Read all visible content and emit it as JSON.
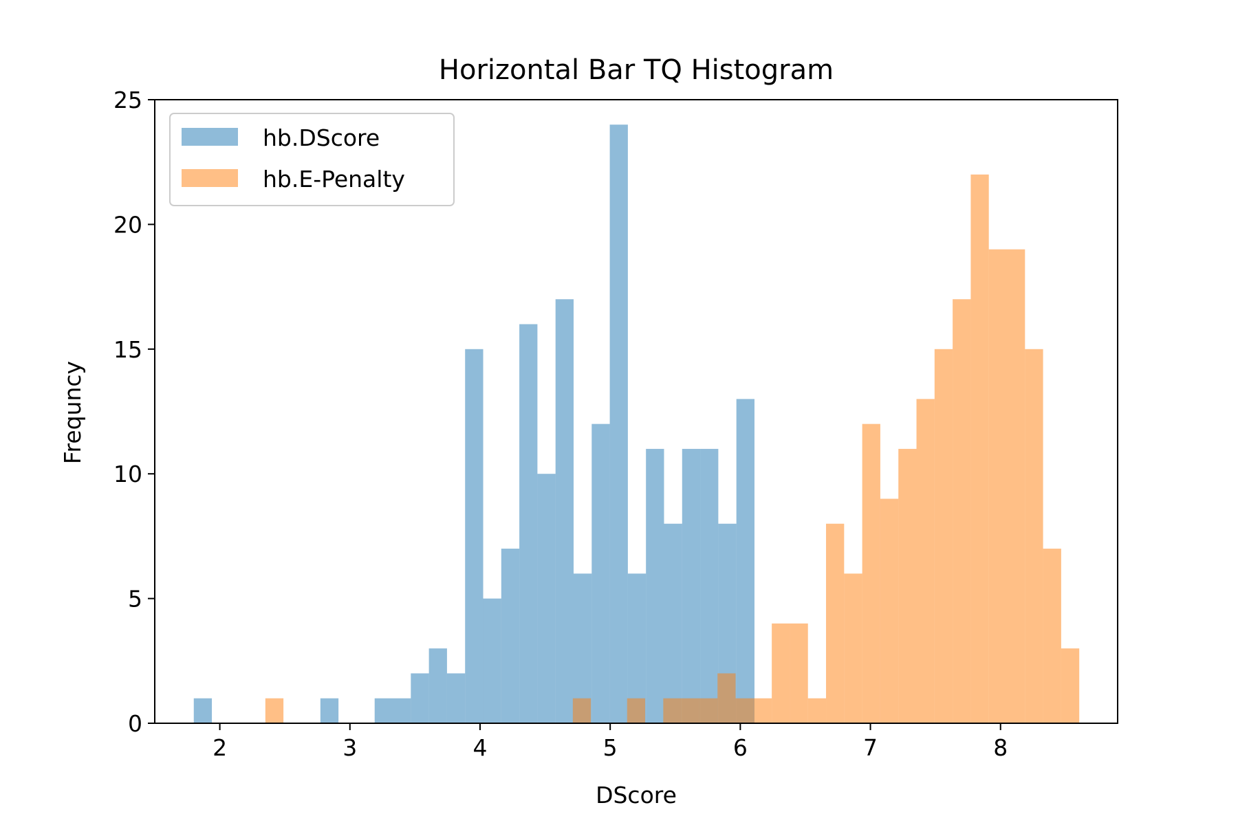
{
  "chart_data": {
    "type": "bar",
    "title": "Horizontal Bar TQ Histogram",
    "xlabel": "DScore",
    "ylabel": "Frequncy",
    "xlim": [
      1.5,
      8.9
    ],
    "ylim": [
      0,
      25
    ],
    "xticks": [
      2,
      3,
      4,
      5,
      6,
      7,
      8
    ],
    "yticks": [
      0,
      5,
      10,
      15,
      20,
      25
    ],
    "grid": false,
    "legend_position": "upper-left",
    "series": [
      {
        "name": "hb.DScore",
        "color": "#1f77b4",
        "alpha": 0.5,
        "bin_edges": [
          1.8,
          1.939,
          2.078,
          2.217,
          2.356,
          2.495,
          2.634,
          2.773,
          2.912,
          3.051,
          3.19,
          3.329,
          3.468,
          3.607,
          3.746,
          3.885,
          4.024,
          4.163,
          4.302,
          4.441,
          4.58,
          4.719,
          4.858,
          4.997,
          5.136,
          5.275,
          5.414,
          5.553,
          5.692,
          5.831,
          5.97,
          6.109
        ],
        "counts": [
          1,
          0,
          0,
          0,
          0,
          0,
          0,
          1,
          0,
          0,
          1,
          1,
          2,
          3,
          2,
          15,
          5,
          7,
          16,
          10,
          17,
          6,
          12,
          24,
          6,
          11,
          8,
          11,
          11,
          8,
          13
        ]
      },
      {
        "name": "hb.E-Penalty",
        "color": "#ff7f0e",
        "alpha": 0.5,
        "bin_edges": [
          2.35,
          2.489,
          2.628,
          2.767,
          2.906,
          3.045,
          3.184,
          3.323,
          3.462,
          3.601,
          3.74,
          3.879,
          4.018,
          4.157,
          4.296,
          4.435,
          4.574,
          4.713,
          4.852,
          4.991,
          5.13,
          5.269,
          5.408,
          5.547,
          5.686,
          5.825,
          5.964,
          6.103,
          6.242,
          6.381,
          6.52,
          6.659,
          6.798,
          6.937,
          7.076,
          7.215,
          7.354,
          7.493,
          7.632,
          7.771,
          7.91,
          8.049,
          8.188,
          8.327,
          8.466,
          8.605
        ],
        "counts": [
          1,
          0,
          0,
          0,
          0,
          0,
          0,
          0,
          0,
          0,
          0,
          0,
          0,
          0,
          0,
          0,
          0,
          1,
          0,
          0,
          1,
          0,
          1,
          1,
          1,
          2,
          1,
          1,
          4,
          4,
          1,
          8,
          6,
          12,
          9,
          11,
          13,
          15,
          17,
          22,
          19,
          19,
          15,
          7,
          3
        ]
      }
    ]
  }
}
